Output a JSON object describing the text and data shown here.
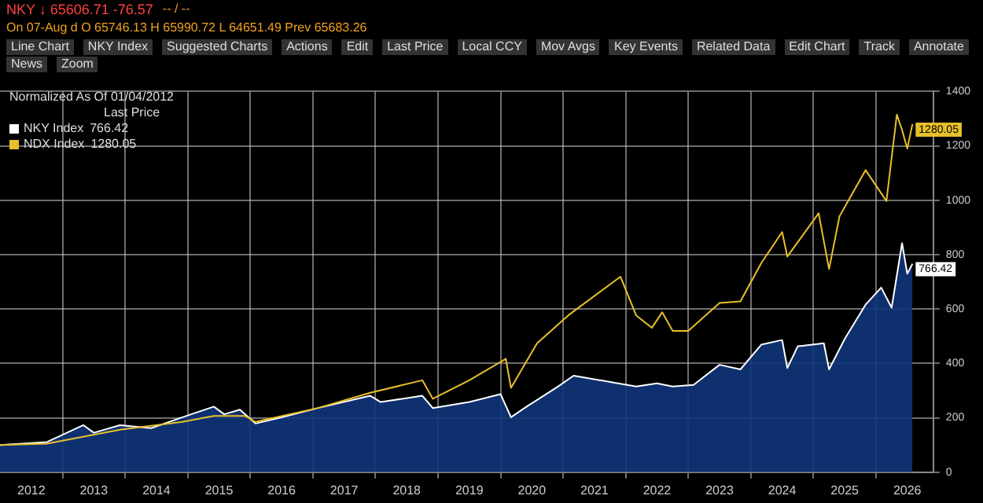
{
  "chart_data": {
    "type": "line",
    "title": "Normalized As Of 01/04/2012",
    "subtitle": "Last Price",
    "annotations": [
      "NKY ↓ 65606.71 -76.57",
      "-- / --",
      "On 07-Aug d O 65746.13 H 65990.72 L 64651.49 Prev 65683.26",
      "Line Chart",
      "NKY Index",
      "Suggested Charts",
      "Actions",
      "Edit",
      "Last Price",
      "Local CCY",
      "Mov Avgs",
      "Key Events",
      "Related Data",
      "Edit Chart",
      "Track",
      "Annotate",
      "News",
      "Zoom"
    ],
    "series": [
      {
        "name": "NKY Index",
        "type": "area",
        "color": "#ffffff",
        "x": [
          "2012-01",
          "2012-10",
          "2013-05",
          "2013-07",
          "2013-12",
          "2014-06",
          "2014-12",
          "2015-06",
          "2015-08",
          "2015-11",
          "2016-02",
          "2016-07",
          "2017-02",
          "2017-12",
          "2018-02",
          "2018-10",
          "2018-12",
          "2019-07",
          "2020-01",
          "2020-03",
          "2020-06",
          "2020-12",
          "2021-03",
          "2021-10",
          "2022-03",
          "2022-07",
          "2022-10",
          "2023-02",
          "2023-07",
          "2023-11",
          "2024-03",
          "2024-07",
          "2024-08",
          "2024-10",
          "2025-03",
          "2025-04",
          "2025-07",
          "2025-11",
          "2026-02",
          "2026-04",
          "2026-06",
          "2026-07",
          "2026-08"
        ],
        "values": [
          100,
          111,
          173,
          145,
          173,
          162,
          202,
          241,
          213,
          230,
          179,
          202,
          236,
          281,
          258,
          281,
          236,
          258,
          287,
          202,
          241,
          315,
          355,
          332,
          315,
          327,
          315,
          321,
          395,
          378,
          469,
          486,
          383,
          463,
          474,
          378,
          490,
          616,
          679,
          605,
          842,
          730,
          766.42
        ],
        "value_labels": [
          null,
          null,
          null,
          null,
          null,
          null,
          null,
          null,
          null,
          null,
          null,
          null,
          null,
          null,
          null,
          null,
          null,
          null,
          null,
          null,
          null,
          null,
          null,
          null,
          null,
          null,
          null,
          null,
          null,
          null,
          null,
          null,
          null,
          null,
          null,
          null,
          null,
          null,
          null,
          null,
          null,
          null,
          "766.42"
        ]
      },
      {
        "name": "NDX Index",
        "type": "line",
        "color": "#e8c02a",
        "x": [
          "2012-01",
          "2012-10",
          "2013-12",
          "2014-12",
          "2015-06",
          "2015-12",
          "2016-02",
          "2017-02",
          "2017-12",
          "2018-10",
          "2018-12",
          "2019-07",
          "2020-02",
          "2020-03",
          "2020-08",
          "2021-02",
          "2021-12",
          "2022-03",
          "2022-06",
          "2022-08",
          "2022-10",
          "2023-01",
          "2023-07",
          "2023-11",
          "2024-03",
          "2024-07",
          "2024-08",
          "2025-02",
          "2025-04",
          "2025-06",
          "2025-11",
          "2026-03",
          "2026-05",
          "2026-06",
          "2026-07",
          "2026-08"
        ],
        "values": [
          100,
          105,
          156,
          185,
          207,
          207,
          185,
          236,
          292,
          338,
          270,
          338,
          417,
          310,
          474,
          577,
          719,
          577,
          531,
          588,
          520,
          520,
          622,
          628,
          769,
          883,
          793,
          952,
          747,
          941,
          1111,
          997,
          1315,
          1258,
          1190,
          1280.05
        ],
        "value_labels": [
          null,
          null,
          null,
          null,
          null,
          null,
          null,
          null,
          null,
          null,
          null,
          null,
          null,
          null,
          null,
          null,
          null,
          null,
          null,
          null,
          null,
          null,
          null,
          null,
          null,
          null,
          null,
          null,
          null,
          null,
          null,
          null,
          null,
          null,
          null,
          "1280.05"
        ]
      }
    ],
    "xlim": [
      "2012-01",
      "2026-12"
    ],
    "xticks": [
      {
        "value": "2012-07",
        "label": "2012"
      },
      {
        "value": "2013-01",
        "label": null
      },
      {
        "value": "2013-07",
        "label": "2013"
      },
      {
        "value": "2014-01",
        "label": null
      },
      {
        "value": "2014-07",
        "label": "2014"
      },
      {
        "value": "2015-01",
        "label": null
      },
      {
        "value": "2015-07",
        "label": "2015"
      },
      {
        "value": "2016-01",
        "label": null
      },
      {
        "value": "2016-07",
        "label": "2016"
      },
      {
        "value": "2017-01",
        "label": null
      },
      {
        "value": "2017-07",
        "label": "2017"
      },
      {
        "value": "2018-01",
        "label": null
      },
      {
        "value": "2018-07",
        "label": "2018"
      },
      {
        "value": "2019-01",
        "label": null
      },
      {
        "value": "2019-07",
        "label": "2019"
      },
      {
        "value": "2020-01",
        "label": null
      },
      {
        "value": "2020-07",
        "label": "2020"
      },
      {
        "value": "2021-01",
        "label": null
      },
      {
        "value": "2021-07",
        "label": "2021"
      },
      {
        "value": "2022-01",
        "label": null
      },
      {
        "value": "2022-07",
        "label": "2022"
      },
      {
        "value": "2023-01",
        "label": null
      },
      {
        "value": "2023-07",
        "label": "2023"
      },
      {
        "value": "2024-01",
        "label": null
      },
      {
        "value": "2024-07",
        "label": "2024"
      },
      {
        "value": "2025-01",
        "label": null
      },
      {
        "value": "2025-07",
        "label": "2025"
      },
      {
        "value": "2026-01",
        "label": null
      },
      {
        "value": "2026-07",
        "label": "2026"
      }
    ],
    "ylim": [
      0,
      1400
    ],
    "yticks": [
      0,
      200,
      400,
      600,
      800,
      1000,
      1200,
      1400
    ],
    "grid": true,
    "legend": "top left",
    "marker": "none",
    "line_style": "solid"
  }
}
